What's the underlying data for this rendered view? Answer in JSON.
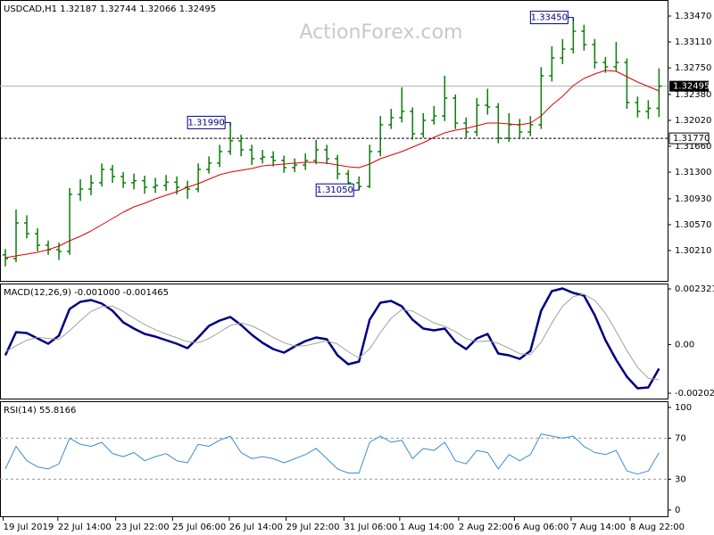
{
  "chart_data": [
    {
      "type": "ohlc",
      "title": "USDCAD,H1  1.32187 1.32744 1.32066 1.32495",
      "watermark": "ActionForex.com",
      "color": "#0a7d0a",
      "open": [
        1.3015,
        1.30098,
        1.30594,
        1.30445,
        1.30284,
        1.30222,
        1.30197,
        1.30991,
        1.31065,
        1.31152,
        1.31338,
        1.31239,
        1.31152,
        1.3118,
        1.3109,
        1.31115,
        1.3116,
        1.3109,
        1.31065,
        1.31338,
        1.31425,
        1.31586,
        1.31735,
        1.31611,
        1.31487,
        1.3151,
        1.31462,
        1.31363,
        1.314,
        1.31462,
        1.31611,
        1.31487,
        1.31276,
        1.31152,
        1.311,
        1.31586,
        1.31958,
        1.32057,
        1.32144,
        1.31834,
        1.3202,
        1.32082,
        1.3233,
        1.31982,
        1.31859,
        1.3223,
        1.32206,
        1.31772,
        1.31958,
        1.31859,
        1.31958,
        1.32639,
        1.32887,
        1.33011,
        1.33259,
        1.33073,
        1.32825,
        1.32763,
        1.32825,
        1.32268,
        1.32144,
        1.32187
      ],
      "high": [
        1.3023,
        1.3078,
        1.307,
        1.3052,
        1.3035,
        1.3032,
        1.3108,
        1.312,
        1.3126,
        1.3142,
        1.314,
        1.313,
        1.3128,
        1.3125,
        1.3122,
        1.3126,
        1.3124,
        1.3118,
        1.3142,
        1.3152,
        1.3168,
        1.3199,
        1.3182,
        1.3168,
        1.3161,
        1.3159,
        1.3153,
        1.3149,
        1.3156,
        1.3175,
        1.3168,
        1.3154,
        1.3133,
        1.3124,
        1.3168,
        1.3208,
        1.3218,
        1.3248,
        1.322,
        1.3212,
        1.3222,
        1.3264,
        1.3238,
        1.3206,
        1.3233,
        1.3246,
        1.3226,
        1.3212,
        1.3204,
        1.3208,
        1.3276,
        1.3305,
        1.3315,
        1.3345,
        1.3335,
        1.3315,
        1.329,
        1.3311,
        1.3288,
        1.3235,
        1.323,
        1.32744
      ],
      "low": [
        1.2999,
        1.3005,
        1.3038,
        1.302,
        1.3015,
        1.3008,
        1.3015,
        1.309,
        1.3098,
        1.311,
        1.3115,
        1.3108,
        1.3106,
        1.31,
        1.3101,
        1.3104,
        1.3099,
        1.3093,
        1.3102,
        1.3128,
        1.3137,
        1.3154,
        1.3152,
        1.314,
        1.3142,
        1.3138,
        1.3129,
        1.313,
        1.3133,
        1.3141,
        1.3141,
        1.312,
        1.3108,
        1.3105,
        1.3108,
        1.3152,
        1.319,
        1.3199,
        1.3175,
        1.3178,
        1.3196,
        1.3201,
        1.319,
        1.3178,
        1.318,
        1.321,
        1.317,
        1.3172,
        1.3176,
        1.318,
        1.319,
        1.3256,
        1.328,
        1.3295,
        1.3299,
        1.3274,
        1.3268,
        1.327,
        1.3218,
        1.3206,
        1.3204,
        1.32066
      ],
      "close": [
        1.30098,
        1.30594,
        1.30445,
        1.30284,
        1.30222,
        1.30197,
        1.30991,
        1.31065,
        1.31152,
        1.31338,
        1.31239,
        1.31152,
        1.3118,
        1.3109,
        1.31115,
        1.3116,
        1.3109,
        1.31065,
        1.31338,
        1.31425,
        1.31586,
        1.31735,
        1.31611,
        1.31487,
        1.3151,
        1.31462,
        1.31363,
        1.314,
        1.31462,
        1.31611,
        1.31487,
        1.31276,
        1.31152,
        1.311,
        1.31586,
        1.31958,
        1.32057,
        1.32144,
        1.31834,
        1.3202,
        1.32082,
        1.3233,
        1.31982,
        1.31859,
        1.3223,
        1.32206,
        1.31772,
        1.31958,
        1.31859,
        1.31958,
        1.32639,
        1.32887,
        1.33011,
        1.33259,
        1.33073,
        1.32825,
        1.32763,
        1.32825,
        1.32268,
        1.32144,
        1.32187,
        1.32495
      ],
      "ma": {
        "color": "#e00000",
        "values": [
          1.30111,
          1.30136,
          1.3016,
          1.30185,
          1.30222,
          1.30272,
          1.30346,
          1.30408,
          1.30483,
          1.30569,
          1.30656,
          1.30743,
          1.30817,
          1.30867,
          1.30929,
          1.30978,
          1.31028,
          1.3109,
          1.3114,
          1.31202,
          1.31264,
          1.31301,
          1.31326,
          1.3135,
          1.31387,
          1.314,
          1.31412,
          1.31425,
          1.31437,
          1.31437,
          1.31425,
          1.314,
          1.31375,
          1.31363,
          1.31412,
          1.31487,
          1.31536,
          1.31586,
          1.31648,
          1.3171,
          1.31784,
          1.31846,
          1.31883,
          1.31908,
          1.31945,
          1.31983,
          1.31983,
          1.3197,
          1.31958,
          1.31983,
          1.32082,
          1.32231,
          1.32354,
          1.32503,
          1.32602,
          1.32664,
          1.32714,
          1.32701,
          1.32627,
          1.32553,
          1.32491,
          1.32429
        ]
      },
      "xlim": [
        -0.5,
        61.8
      ],
      "ylim": [
        1.29776,
        1.33693
      ],
      "yticks": [
        {
          "value": 1.3021,
          "label": "1.30210"
        },
        {
          "value": 1.3057,
          "label": "1.30570"
        },
        {
          "value": 1.3093,
          "label": "1.30930"
        },
        {
          "value": 1.313,
          "label": "1.31300"
        },
        {
          "value": 1.3166,
          "label": "1.31660"
        },
        {
          "value": 1.3202,
          "label": "1.32020"
        },
        {
          "value": 1.3238,
          "label": "1.32380"
        },
        {
          "value": 1.3275,
          "label": "1.32750"
        },
        {
          "value": 1.3311,
          "label": "1.33110"
        },
        {
          "value": 1.3347,
          "label": "1.33470"
        }
      ],
      "last_price": {
        "value": 1.32495,
        "label": "1.32495"
      },
      "level": {
        "value": 1.3177,
        "label": "1.31770"
      },
      "annotations": [
        {
          "value": 1.3199,
          "label": "1.31990"
        },
        {
          "value": 1.3105,
          "label": "1.31050"
        },
        {
          "value": 1.3345,
          "label": "1.33450"
        }
      ]
    },
    {
      "type": "macd",
      "title": "MACD(12,26,9) -0.001000 -0.001465",
      "series": [
        {
          "color": "#000080",
          "values": [
            -0.000446,
            0.00052,
            0.000483,
            0.00026,
            3.7e-05,
            0.000372,
            0.001486,
            0.001783,
            0.001858,
            0.001709,
            0.001412,
            0.000929,
            0.000669,
            0.000446,
            0.000334,
            0.000186,
            3.7e-05,
            -0.000149,
            0.000297,
            0.00078,
            0.001003,
            0.001152,
            0.000817,
            0.000409,
            7.4e-05,
            -0.000186,
            -0.000334,
            -7.4e-05,
            0.000149,
            0.000297,
            0.000223,
            -0.000446,
            -0.000817,
            -0.000706,
            0.00104,
            0.001746,
            0.00182,
            0.001597,
            0.00104,
            0.000669,
            0.000594,
            0.000669,
            0.000111,
            -0.000186,
            0.00026,
            0.000446,
            -0.000372,
            -0.000446,
            -0.000594,
            -0.00026,
            0.001412,
            0.002229,
            0.00234,
            0.002155,
            0.002043,
            0.001226,
            0.000186,
            -0.000632,
            -0.001337,
            -0.00182,
            -0.001783,
            -0.001
          ]
        },
        {
          "color": "#a0a0a0",
          "values": [
            -0.0003,
            -5e-05,
            0.00018,
            0.0003,
            0.00026,
            0.00022,
            0.00058,
            0.001,
            0.00138,
            0.00158,
            0.0016,
            0.00138,
            0.0011,
            0.00084,
            0.00062,
            0.00044,
            0.00028,
            0.00012,
            8e-05,
            0.00025,
            0.00052,
            0.0008,
            0.0009,
            0.00078,
            0.00056,
            0.0003,
            8e-05,
            -6e-05,
            -5e-05,
            6e-05,
            0.00016,
            2e-05,
            -0.0003,
            -0.00056,
            -0.00018,
            0.0005,
            0.0011,
            0.00145,
            0.0014,
            0.00115,
            0.0009,
            0.00076,
            0.00054,
            0.00025,
            0.00012,
            0.00016,
            6e-05,
            -0.00015,
            -0.00038,
            -0.00042,
            0.0001,
            0.0009,
            0.0016,
            0.002,
            0.0021,
            0.00185,
            0.0013,
            0.00055,
            -0.00025,
            -0.00095,
            -0.0014,
            -0.001465
          ]
        }
      ],
      "ylim": [
        -0.002286,
        0.002544
      ],
      "yticks": [
        0.002321,
        {
          "value": 0,
          "label": "0.00"
        },
        -0.002026
      ]
    },
    {
      "type": "line",
      "title": "RSI(14) 55.8166",
      "series": [
        {
          "color": "#3a8bd6",
          "values": [
            40,
            62,
            48,
            42,
            40,
            45,
            70,
            64,
            62,
            66,
            55,
            52,
            56,
            48,
            52,
            55,
            48,
            46,
            64,
            62,
            68,
            72,
            56,
            50,
            52,
            50,
            46,
            50,
            54,
            60,
            50,
            40,
            36,
            36,
            66,
            72,
            66,
            68,
            50,
            60,
            58,
            66,
            48,
            45,
            58,
            56,
            40,
            54,
            48,
            54,
            74,
            72,
            70,
            72,
            62,
            56,
            54,
            58,
            38,
            35,
            38,
            55.8166
          ]
        }
      ],
      "ylim": [
        -7,
        106
      ],
      "yticks": [
        100,
        70,
        30,
        0
      ],
      "levels": [
        70,
        30
      ],
      "xticks": [
        {
          "value": -0.2,
          "label": "19 Jul 2019"
        },
        {
          "value": 4.9,
          "label": "22 Jul 14:00"
        },
        {
          "value": 10.3,
          "label": "23 Jul 22:00"
        },
        {
          "value": 15.6,
          "label": "25 Jul 06:00"
        },
        {
          "value": 20.9,
          "label": "26 Jul 14:00"
        },
        {
          "value": 26.2,
          "label": "29 Jul 22:00"
        },
        {
          "value": 31.6,
          "label": "31 Jul 06:00"
        },
        {
          "value": 36.8,
          "label": "1 Aug 14:00"
        },
        {
          "value": 42.3,
          "label": "2 Aug 22:00"
        },
        {
          "value": 47.5,
          "label": "6 Aug 06:00"
        },
        {
          "value": 52.8,
          "label": "7 Aug 14:00"
        },
        {
          "value": 58.3,
          "label": "8 Aug 22:00"
        }
      ]
    }
  ]
}
